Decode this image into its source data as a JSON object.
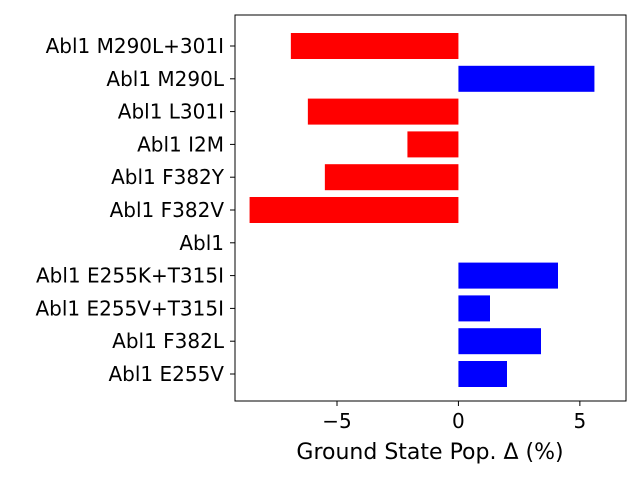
{
  "chart_data": {
    "type": "bar",
    "orientation": "horizontal",
    "categories": [
      "Abl1 M290L+301I",
      "Abl1 M290L",
      "Abl1 L301I",
      "Abl1 I2M",
      "Abl1 F382Y",
      "Abl1 F382V",
      "Abl1",
      "Abl1 E255K+T315I",
      "Abl1 E255V+T315I",
      "Abl1 F382L",
      "Abl1 E255V"
    ],
    "values": [
      -6.9,
      5.6,
      -6.2,
      -2.1,
      -5.5,
      -8.6,
      0,
      4.1,
      1.3,
      3.4,
      2.0
    ],
    "colors": {
      "negative": "#ff0000",
      "positive": "#0000ff"
    },
    "title": "",
    "xlabel": "Ground State Pop. Δ (%)",
    "ylabel": "",
    "xlim": [
      -9.2,
      6.9
    ],
    "xticks": [
      -5,
      0,
      5
    ],
    "xtick_labels": [
      "−5",
      "0",
      "5"
    ],
    "grid": false,
    "legend": "none"
  }
}
